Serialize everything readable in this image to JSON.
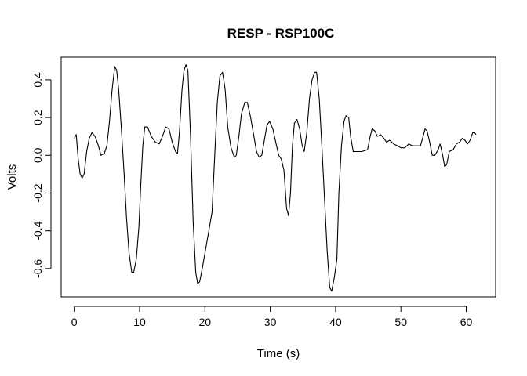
{
  "chart_data": {
    "type": "line",
    "title": "RESP - RSP100C",
    "xlabel": "Time (s)",
    "ylabel": "Volts",
    "xlim": [
      -2,
      64.5
    ],
    "ylim": [
      -0.75,
      0.52
    ],
    "xticks": [
      0,
      10,
      20,
      30,
      40,
      50,
      60
    ],
    "xtick_labels": [
      "0",
      "10",
      "20",
      "30",
      "40",
      "50",
      "60"
    ],
    "yticks": [
      -0.6,
      -0.4,
      -0.2,
      0.0,
      0.2,
      0.4
    ],
    "ytick_labels": [
      "-0.6",
      "-0.4",
      "-0.2",
      "0.0",
      "0.2",
      "0.4"
    ],
    "grid": false,
    "series": [
      {
        "name": "RESP",
        "color": "#000000",
        "points": [
          [
            0.0,
            0.09
          ],
          [
            0.3,
            0.11
          ],
          [
            0.6,
            -0.02
          ],
          [
            0.9,
            -0.1
          ],
          [
            1.2,
            -0.12
          ],
          [
            1.5,
            -0.1
          ],
          [
            1.9,
            0.02
          ],
          [
            2.3,
            0.09
          ],
          [
            2.7,
            0.12
          ],
          [
            3.2,
            0.1
          ],
          [
            3.7,
            0.05
          ],
          [
            4.1,
            0.0
          ],
          [
            4.6,
            0.01
          ],
          [
            5.0,
            0.05
          ],
          [
            5.4,
            0.18
          ],
          [
            5.8,
            0.35
          ],
          [
            6.2,
            0.47
          ],
          [
            6.5,
            0.45
          ],
          [
            6.8,
            0.35
          ],
          [
            7.2,
            0.15
          ],
          [
            7.6,
            -0.08
          ],
          [
            8.0,
            -0.33
          ],
          [
            8.4,
            -0.52
          ],
          [
            8.8,
            -0.62
          ],
          [
            9.1,
            -0.62
          ],
          [
            9.5,
            -0.55
          ],
          [
            9.9,
            -0.38
          ],
          [
            10.2,
            -0.15
          ],
          [
            10.5,
            0.05
          ],
          [
            10.8,
            0.15
          ],
          [
            11.2,
            0.15
          ],
          [
            11.8,
            0.1
          ],
          [
            12.4,
            0.07
          ],
          [
            13.0,
            0.06
          ],
          [
            13.5,
            0.1
          ],
          [
            14.0,
            0.15
          ],
          [
            14.5,
            0.14
          ],
          [
            15.0,
            0.07
          ],
          [
            15.5,
            0.02
          ],
          [
            15.8,
            0.01
          ],
          [
            16.1,
            0.12
          ],
          [
            16.5,
            0.35
          ],
          [
            16.8,
            0.45
          ],
          [
            17.1,
            0.48
          ],
          [
            17.4,
            0.45
          ],
          [
            17.8,
            0.1
          ],
          [
            18.2,
            -0.35
          ],
          [
            18.6,
            -0.62
          ],
          [
            18.9,
            -0.68
          ],
          [
            19.2,
            -0.67
          ],
          [
            19.6,
            -0.6
          ],
          [
            20.1,
            -0.5
          ],
          [
            20.6,
            -0.4
          ],
          [
            21.1,
            -0.3
          ],
          [
            21.5,
            0.0
          ],
          [
            21.9,
            0.28
          ],
          [
            22.3,
            0.42
          ],
          [
            22.7,
            0.44
          ],
          [
            23.1,
            0.35
          ],
          [
            23.5,
            0.15
          ],
          [
            24.0,
            0.04
          ],
          [
            24.5,
            -0.01
          ],
          [
            24.8,
            0.0
          ],
          [
            25.2,
            0.1
          ],
          [
            25.6,
            0.22
          ],
          [
            26.1,
            0.28
          ],
          [
            26.5,
            0.28
          ],
          [
            27.0,
            0.2
          ],
          [
            27.5,
            0.1
          ],
          [
            27.9,
            0.02
          ],
          [
            28.3,
            -0.01
          ],
          [
            28.7,
            0.0
          ],
          [
            29.1,
            0.08
          ],
          [
            29.5,
            0.16
          ],
          [
            29.9,
            0.18
          ],
          [
            30.4,
            0.14
          ],
          [
            30.9,
            0.06
          ],
          [
            31.3,
            0.0
          ],
          [
            31.7,
            -0.02
          ],
          [
            32.1,
            -0.08
          ],
          [
            32.5,
            -0.28
          ],
          [
            32.8,
            -0.32
          ],
          [
            33.1,
            -0.2
          ],
          [
            33.4,
            0.05
          ],
          [
            33.7,
            0.17
          ],
          [
            34.1,
            0.19
          ],
          [
            34.5,
            0.14
          ],
          [
            34.9,
            0.05
          ],
          [
            35.2,
            0.02
          ],
          [
            35.6,
            0.12
          ],
          [
            36.0,
            0.3
          ],
          [
            36.4,
            0.4
          ],
          [
            36.8,
            0.44
          ],
          [
            37.1,
            0.44
          ],
          [
            37.5,
            0.3
          ],
          [
            37.9,
            0.05
          ],
          [
            38.3,
            -0.22
          ],
          [
            38.7,
            -0.5
          ],
          [
            39.1,
            -0.7
          ],
          [
            39.4,
            -0.72
          ],
          [
            39.8,
            -0.65
          ],
          [
            40.2,
            -0.55
          ],
          [
            40.5,
            -0.2
          ],
          [
            40.9,
            0.05
          ],
          [
            41.3,
            0.18
          ],
          [
            41.6,
            0.21
          ],
          [
            42.0,
            0.2
          ],
          [
            42.3,
            0.1
          ],
          [
            42.7,
            0.02
          ],
          [
            43.2,
            0.02
          ],
          [
            44.0,
            0.02
          ],
          [
            44.9,
            0.03
          ],
          [
            45.3,
            0.1
          ],
          [
            45.6,
            0.14
          ],
          [
            46.0,
            0.13
          ],
          [
            46.4,
            0.1
          ],
          [
            46.9,
            0.11
          ],
          [
            47.4,
            0.09
          ],
          [
            47.8,
            0.07
          ],
          [
            48.3,
            0.08
          ],
          [
            48.9,
            0.06
          ],
          [
            49.5,
            0.05
          ],
          [
            50.0,
            0.04
          ],
          [
            50.6,
            0.04
          ],
          [
            51.2,
            0.06
          ],
          [
            51.8,
            0.05
          ],
          [
            52.4,
            0.05
          ],
          [
            53.0,
            0.05
          ],
          [
            53.4,
            0.1
          ],
          [
            53.7,
            0.14
          ],
          [
            54.0,
            0.13
          ],
          [
            54.4,
            0.07
          ],
          [
            54.8,
            0.0
          ],
          [
            55.2,
            0.0
          ],
          [
            55.7,
            0.03
          ],
          [
            56.0,
            0.06
          ],
          [
            56.4,
            0.0
          ],
          [
            56.7,
            -0.06
          ],
          [
            57.0,
            -0.05
          ],
          [
            57.4,
            0.02
          ],
          [
            58.0,
            0.03
          ],
          [
            58.5,
            0.06
          ],
          [
            59.0,
            0.07
          ],
          [
            59.4,
            0.09
          ],
          [
            59.8,
            0.08
          ],
          [
            60.2,
            0.06
          ],
          [
            60.6,
            0.08
          ],
          [
            61.0,
            0.12
          ],
          [
            61.3,
            0.12
          ],
          [
            61.5,
            0.11
          ]
        ]
      }
    ]
  }
}
